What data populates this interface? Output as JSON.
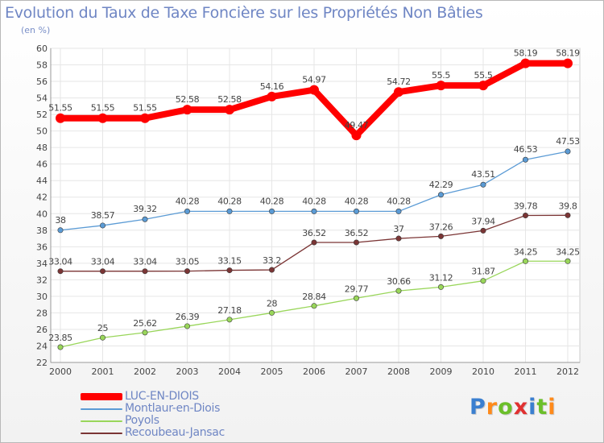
{
  "title": "Evolution du Taux de Taxe Foncière sur les Propriétés Non Bâties",
  "unit_label": "(en %)",
  "brand": "Proxiti",
  "chart_data": {
    "type": "line",
    "x": [
      "2000",
      "2001",
      "2002",
      "2003",
      "2004",
      "2005",
      "2006",
      "2007",
      "2008",
      "2009",
      "2010",
      "2011",
      "2012"
    ],
    "ylim": [
      22,
      60
    ],
    "yticks": [
      22,
      24,
      26,
      28,
      30,
      32,
      34,
      36,
      38,
      40,
      42,
      44,
      46,
      48,
      50,
      52,
      54,
      56,
      58,
      60
    ],
    "grid": true,
    "legend": "bottom-left",
    "series": [
      {
        "name": "LUC-EN-DIOIS",
        "color": "#ff0000",
        "values": [
          51.55,
          51.55,
          51.55,
          52.58,
          52.58,
          54.16,
          54.97,
          49.47,
          54.72,
          55.5,
          55.5,
          58.19,
          58.19
        ],
        "labels": [
          "51.55",
          "51.55",
          "51.55",
          "52.58",
          "52.58",
          "54.16",
          "54.97",
          "49.47",
          "54.72",
          "55.5",
          "55.5",
          "58.19",
          "58.19"
        ]
      },
      {
        "name": "Montlaur-en-Diois",
        "color": "#5b9bd5",
        "values": [
          38,
          38.57,
          39.32,
          40.28,
          40.28,
          40.28,
          40.28,
          40.28,
          40.28,
          42.29,
          43.51,
          46.53,
          47.53
        ],
        "labels": [
          "38",
          "38.57",
          "39.32",
          "40.28",
          "40.28",
          "40.28",
          "40.28",
          "40.28",
          "40.28",
          "42.29",
          "43.51",
          "46.53",
          "47.53"
        ]
      },
      {
        "name": "Poyols",
        "color": "#99d65a",
        "values": [
          23.85,
          25,
          25.62,
          26.39,
          27.18,
          28,
          28.84,
          29.77,
          30.66,
          31.12,
          31.87,
          34.25,
          34.25
        ],
        "labels": [
          "23.85",
          "25",
          "25.62",
          "26.39",
          "27.18",
          "28",
          "28.84",
          "29.77",
          "30.66",
          "31.12",
          "31.87",
          "34.25",
          "34.25"
        ]
      },
      {
        "name": "Recoubeau-Jansac",
        "color": "#7b3535",
        "values": [
          33.04,
          33.04,
          33.04,
          33.05,
          33.15,
          33.2,
          36.52,
          36.52,
          37,
          37.26,
          37.94,
          39.78,
          39.8
        ],
        "labels": [
          "33.04",
          "33.04",
          "33.04",
          "33.05",
          "33.15",
          "33.2",
          "36.52",
          "36.52",
          "37",
          "37.26",
          "37.94",
          "39.78",
          "39.8"
        ]
      }
    ]
  }
}
